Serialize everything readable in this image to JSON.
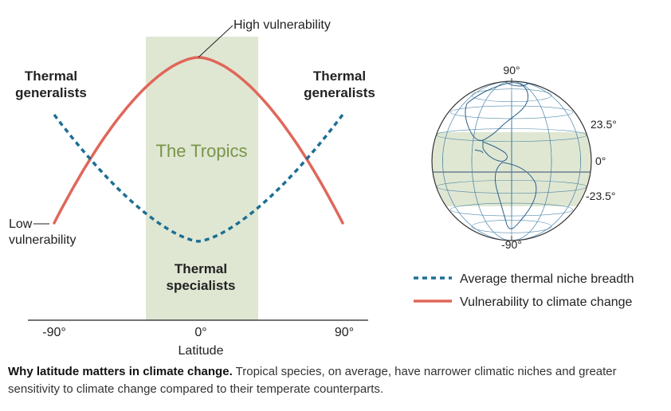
{
  "diagram": {
    "annotations": {
      "high_vulnerability": "High vulnerability",
      "low_vulnerability_line1": "Low",
      "low_vulnerability_line2": "vulnerability",
      "tropics": "The Tropics"
    },
    "groups": {
      "left_generalists_line1": "Thermal",
      "left_generalists_line2": "generalists",
      "right_generalists_line1": "Thermal",
      "right_generalists_line2": "generalists",
      "specialists_line1": "Thermal",
      "specialists_line2": "specialists"
    },
    "axis": {
      "label": "Latitude",
      "ticks": [
        "-90°",
        "0°",
        "90°"
      ]
    },
    "globe": {
      "labels": [
        "90°",
        "23.5°",
        "0°",
        "-23.5°",
        "-90°"
      ]
    },
    "legend": [
      {
        "label": "Average thermal niche breadth",
        "style": "dashed",
        "color": "#1d6f93"
      },
      {
        "label": "Vulnerability to climate change",
        "style": "solid",
        "color": "#e0675a"
      }
    ],
    "colors": {
      "vulnerability": "#e0675a",
      "niche_breadth": "#1d6f93",
      "tropics_band": "#dfe7d3",
      "tropics_text": "#7a9448"
    }
  },
  "caption": {
    "lead": "Why latitude matters in climate change.",
    "body": " Tropical species, on average, have narrower climatic niches and greater sensitivity to climate change compared to their temperate counterparts."
  }
}
